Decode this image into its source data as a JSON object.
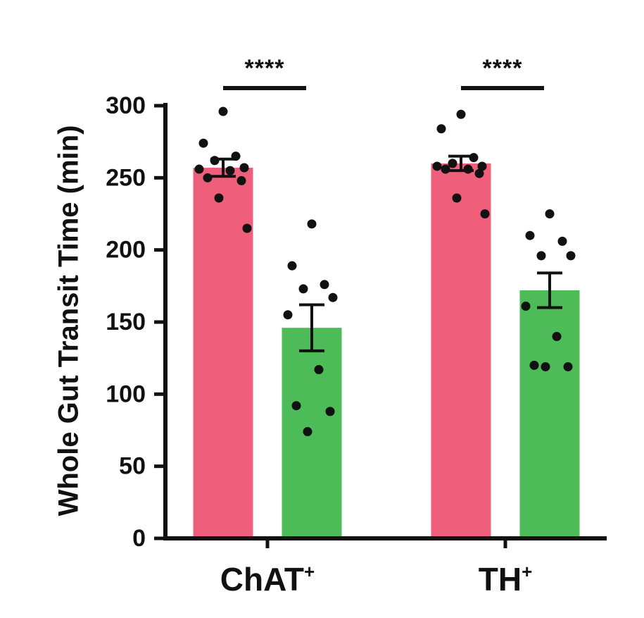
{
  "chart_data": {
    "type": "bar",
    "title": "",
    "xlabel": "",
    "ylabel": "Whole Gut Transit Time (min)",
    "ylim": [
      0,
      300
    ],
    "yticks": [
      0,
      50,
      100,
      150,
      200,
      250,
      300
    ],
    "grid": false,
    "groups": [
      {
        "label": "ChAT",
        "label_sup": "+",
        "significance": "****",
        "bars": [
          {
            "color": "#ef5f7b",
            "mean": 257,
            "sem": 6,
            "points": [
              296,
              274,
              265,
              262,
              257,
              256,
              255,
              250,
              248,
              236,
              215
            ]
          },
          {
            "color": "#4dbb58",
            "mean": 146,
            "sem": 16,
            "points": [
              218,
              189,
              176,
              173,
              167,
              155,
              117,
              92,
              88,
              74
            ]
          }
        ]
      },
      {
        "label": "TH",
        "label_sup": "+",
        "significance": "****",
        "bars": [
          {
            "color": "#ef5f7b",
            "mean": 260,
            "sem": 5,
            "points": [
              294,
              284,
              264,
              260,
              258,
              258,
              256,
              256,
              253,
              236,
              225
            ]
          },
          {
            "color": "#4dbb58",
            "mean": 172,
            "sem": 12,
            "points": [
              225,
              210,
              206,
              196,
              196,
              161,
              140,
              120,
              119,
              119
            ]
          }
        ]
      }
    ]
  }
}
